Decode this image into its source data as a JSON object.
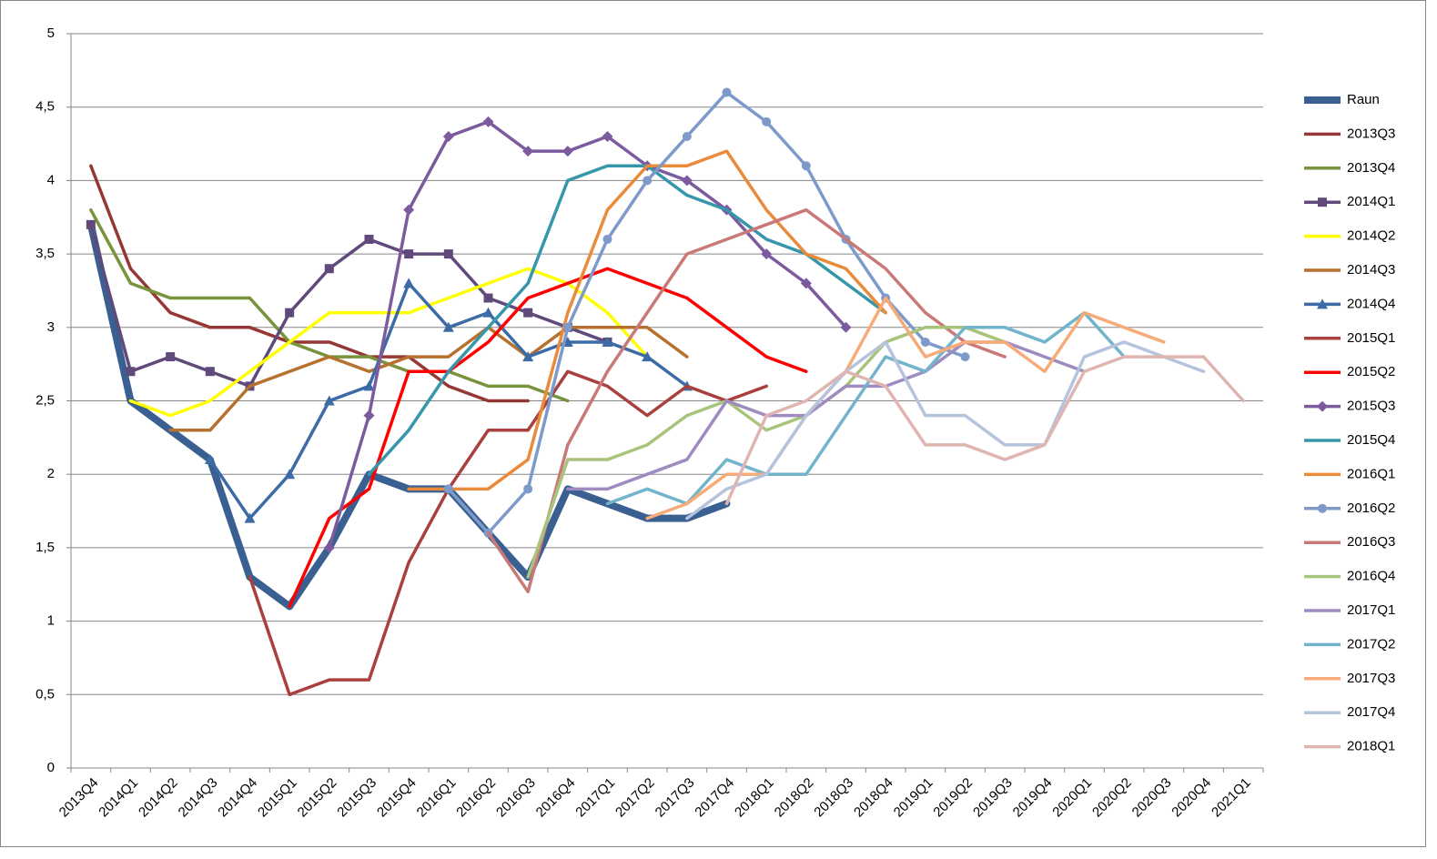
{
  "chart_data": {
    "type": "line",
    "categories": [
      "2013Q4",
      "2014Q1",
      "2014Q2",
      "2014Q3",
      "2014Q4",
      "2015Q1",
      "2015Q2",
      "2015Q3",
      "2015Q4",
      "2016Q1",
      "2016Q2",
      "2016Q3",
      "2016Q4",
      "2017Q1",
      "2017Q2",
      "2017Q3",
      "2017Q4",
      "2018Q1",
      "2018Q2",
      "2018Q3",
      "2018Q4",
      "2019Q1",
      "2019Q2",
      "2019Q3",
      "2019Q4",
      "2020Q1",
      "2020Q2",
      "2020Q3",
      "2020Q4",
      "2021Q1"
    ],
    "ylim": [
      0,
      5
    ],
    "yticks": [
      0,
      {
        "value": 0.5,
        "label": "0,5"
      },
      1,
      {
        "value": 1.5,
        "label": "1,5"
      },
      2,
      {
        "value": 2.5,
        "label": "2,5"
      },
      3,
      {
        "value": 3.5,
        "label": "3,5"
      },
      4,
      {
        "value": 4.5,
        "label": "4,5"
      },
      5
    ],
    "grid": true,
    "legend": "right",
    "series": [
      {
        "name": "Raun",
        "color": "#3a5f91",
        "width": 8,
        "values": [
          3.7,
          2.5,
          2.3,
          2.1,
          1.3,
          1.1,
          1.5,
          2.0,
          1.9,
          1.9,
          1.6,
          1.3,
          1.9,
          1.8,
          1.7,
          1.7,
          1.8,
          null,
          null,
          null,
          null,
          null,
          null,
          null,
          null,
          null,
          null,
          null,
          null,
          null
        ]
      },
      {
        "name": "2013Q3",
        "color": "#953735",
        "values": [
          4.1,
          3.4,
          3.1,
          3.0,
          3.0,
          2.9,
          2.9,
          2.8,
          2.8,
          2.6,
          2.5,
          2.5,
          null,
          null,
          null,
          null,
          null,
          null,
          null,
          null,
          null,
          null,
          null,
          null,
          null,
          null,
          null,
          null,
          null,
          null
        ]
      },
      {
        "name": "2013Q4",
        "color": "#77933c",
        "values": [
          3.8,
          3.3,
          3.2,
          3.2,
          3.2,
          2.9,
          2.8,
          2.8,
          2.7,
          2.7,
          2.6,
          2.6,
          2.5,
          null,
          null,
          null,
          null,
          null,
          null,
          null,
          null,
          null,
          null,
          null,
          null,
          null,
          null,
          null,
          null,
          null
        ]
      },
      {
        "name": "2014Q1",
        "color": "#604a7b",
        "marker": "square",
        "values": [
          3.7,
          2.7,
          2.8,
          2.7,
          2.6,
          3.1,
          3.4,
          3.6,
          3.5,
          3.5,
          3.2,
          3.1,
          3.0,
          2.9,
          null,
          null,
          null,
          null,
          null,
          null,
          null,
          null,
          null,
          null,
          null,
          null,
          null,
          null,
          null,
          null
        ]
      },
      {
        "name": "2014Q2",
        "color": "#ffff00",
        "values": [
          null,
          2.5,
          2.4,
          2.5,
          2.7,
          2.9,
          3.1,
          3.1,
          3.1,
          3.2,
          3.3,
          3.4,
          3.3,
          3.1,
          2.8,
          null,
          null,
          null,
          null,
          null,
          null,
          null,
          null,
          null,
          null,
          null,
          null,
          null,
          null,
          null
        ]
      },
      {
        "name": "2014Q3",
        "color": "#b7712f",
        "values": [
          null,
          null,
          2.3,
          2.3,
          2.6,
          2.7,
          2.8,
          2.7,
          2.8,
          2.8,
          3.0,
          2.8,
          3.0,
          3.0,
          3.0,
          2.8,
          null,
          null,
          null,
          null,
          null,
          null,
          null,
          null,
          null,
          null,
          null,
          null,
          null,
          null
        ]
      },
      {
        "name": "2014Q4",
        "color": "#3c6ba5",
        "marker": "triangle",
        "values": [
          null,
          null,
          null,
          2.1,
          1.7,
          2.0,
          2.5,
          2.6,
          3.3,
          3.0,
          3.1,
          2.8,
          2.9,
          2.9,
          2.8,
          2.6,
          null,
          null,
          null,
          null,
          null,
          null,
          null,
          null,
          null,
          null,
          null,
          null,
          null,
          null
        ]
      },
      {
        "name": "2015Q1",
        "color": "#a9403d",
        "values": [
          null,
          null,
          null,
          null,
          1.3,
          0.5,
          0.6,
          0.6,
          1.4,
          1.9,
          2.3,
          2.3,
          2.7,
          2.6,
          2.4,
          2.6,
          2.5,
          2.6,
          null,
          null,
          null,
          null,
          null,
          null,
          null,
          null,
          null,
          null,
          null,
          null
        ]
      },
      {
        "name": "2015Q2",
        "color": "#ff0000",
        "values": [
          null,
          null,
          null,
          null,
          null,
          1.1,
          1.7,
          1.9,
          2.7,
          2.7,
          2.9,
          3.2,
          3.3,
          3.4,
          3.3,
          3.2,
          3.0,
          2.8,
          2.7,
          null,
          null,
          null,
          null,
          null,
          null,
          null,
          null,
          null,
          null,
          null
        ]
      },
      {
        "name": "2015Q3",
        "color": "#7b5a9e",
        "marker": "diamond",
        "values": [
          null,
          null,
          null,
          null,
          null,
          null,
          1.5,
          2.4,
          3.8,
          4.3,
          4.4,
          4.2,
          4.2,
          4.3,
          4.1,
          4.0,
          3.8,
          3.5,
          3.3,
          3.0,
          null,
          null,
          null,
          null,
          null,
          null,
          null,
          null,
          null,
          null
        ]
      },
      {
        "name": "2015Q4",
        "color": "#3696aa",
        "values": [
          null,
          null,
          null,
          null,
          null,
          null,
          null,
          2.0,
          2.3,
          2.7,
          3.0,
          3.3,
          4.0,
          4.1,
          4.1,
          3.9,
          3.8,
          3.6,
          3.5,
          3.3,
          3.1,
          null,
          null,
          null,
          null,
          null,
          null,
          null,
          null,
          null
        ]
      },
      {
        "name": "2016Q1",
        "color": "#e98b3a",
        "values": [
          null,
          null,
          null,
          null,
          null,
          null,
          null,
          null,
          1.9,
          1.9,
          1.9,
          2.1,
          3.1,
          3.8,
          4.1,
          4.1,
          4.2,
          3.8,
          3.5,
          3.4,
          3.1,
          null,
          null,
          null,
          null,
          null,
          null,
          null,
          null,
          null
        ]
      },
      {
        "name": "2016Q2",
        "color": "#7d9acb",
        "marker": "circle",
        "values": [
          null,
          null,
          null,
          null,
          null,
          null,
          null,
          null,
          null,
          1.9,
          1.6,
          1.9,
          3.0,
          3.6,
          4.0,
          4.3,
          4.6,
          4.4,
          4.1,
          3.6,
          3.2,
          2.9,
          2.8,
          null,
          null,
          null,
          null,
          null,
          null,
          null
        ]
      },
      {
        "name": "2016Q3",
        "color": "#c97a78",
        "values": [
          null,
          null,
          null,
          null,
          null,
          null,
          null,
          null,
          null,
          null,
          1.6,
          1.2,
          2.2,
          2.7,
          3.1,
          3.5,
          3.6,
          3.7,
          3.8,
          3.6,
          3.4,
          3.1,
          2.9,
          2.8,
          null,
          null,
          null,
          null,
          null,
          null
        ]
      },
      {
        "name": "2016Q4",
        "color": "#a8c47c",
        "values": [
          null,
          null,
          null,
          null,
          null,
          null,
          null,
          null,
          null,
          null,
          null,
          1.3,
          2.1,
          2.1,
          2.2,
          2.4,
          2.5,
          2.3,
          2.4,
          2.6,
          2.9,
          3.0,
          3.0,
          2.9,
          null,
          null,
          null,
          null,
          null,
          null
        ]
      },
      {
        "name": "2017Q1",
        "color": "#9e8bc0",
        "values": [
          null,
          null,
          null,
          null,
          null,
          null,
          null,
          null,
          null,
          null,
          null,
          null,
          1.9,
          1.9,
          2.0,
          2.1,
          2.5,
          2.4,
          2.4,
          2.6,
          2.6,
          2.7,
          2.9,
          2.9,
          2.8,
          2.7,
          null,
          null,
          null,
          null
        ]
      },
      {
        "name": "2017Q2",
        "color": "#72b4cb",
        "values": [
          null,
          null,
          null,
          null,
          null,
          null,
          null,
          null,
          null,
          null,
          null,
          null,
          null,
          1.8,
          1.9,
          1.8,
          2.1,
          2.0,
          2.0,
          2.4,
          2.8,
          2.7,
          3.0,
          3.0,
          2.9,
          3.1,
          2.8,
          null,
          null,
          null
        ]
      },
      {
        "name": "2017Q3",
        "color": "#f7ab78",
        "values": [
          null,
          null,
          null,
          null,
          null,
          null,
          null,
          null,
          null,
          null,
          null,
          null,
          null,
          null,
          1.7,
          1.8,
          2.0,
          2.0,
          2.4,
          2.7,
          3.2,
          2.8,
          2.9,
          2.9,
          2.7,
          3.1,
          3.0,
          2.9,
          null,
          null
        ]
      },
      {
        "name": "2017Q4",
        "color": "#b6c3dc",
        "values": [
          null,
          null,
          null,
          null,
          null,
          null,
          null,
          null,
          null,
          null,
          null,
          null,
          null,
          null,
          null,
          1.7,
          1.9,
          2.0,
          2.4,
          2.7,
          2.9,
          2.4,
          2.4,
          2.2,
          2.2,
          2.8,
          2.9,
          2.8,
          2.7,
          null
        ]
      },
      {
        "name": "2018Q1",
        "color": "#dfb5b1",
        "values": [
          null,
          null,
          null,
          null,
          null,
          null,
          null,
          null,
          null,
          null,
          null,
          null,
          null,
          null,
          null,
          null,
          1.8,
          2.4,
          2.5,
          2.7,
          2.6,
          2.2,
          2.2,
          2.1,
          2.2,
          2.7,
          2.8,
          2.8,
          2.8,
          2.5
        ]
      }
    ]
  }
}
